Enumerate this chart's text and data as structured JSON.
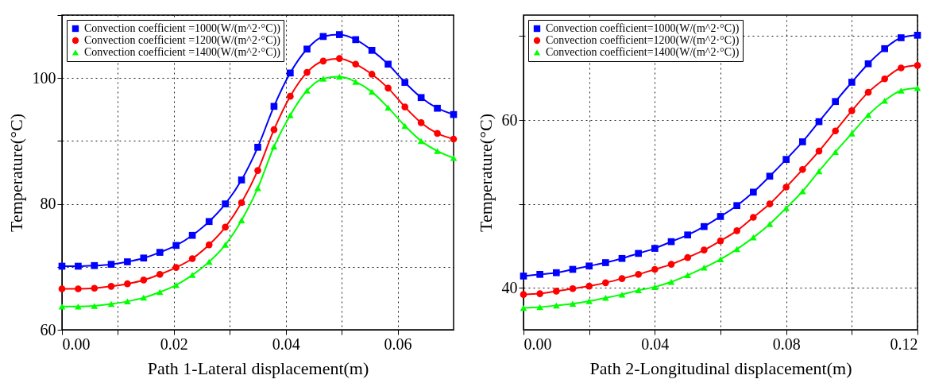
{
  "chart_data": [
    {
      "type": "line",
      "xlabel": "Path 1-Lateral displacement(m)",
      "ylabel": "Temperature(°C)",
      "grid": true,
      "legend": "top left",
      "line_style": "solid",
      "x": [
        0,
        0.0029,
        0.0058,
        0.0088,
        0.0117,
        0.0146,
        0.0175,
        0.0204,
        0.0233,
        0.0263,
        0.0292,
        0.0321,
        0.035,
        0.0379,
        0.0408,
        0.0438,
        0.0467,
        0.0496,
        0.0525,
        0.0554,
        0.0583,
        0.0613,
        0.0642,
        0.0671,
        0.07
      ],
      "xlim": [
        0,
        0.07
      ],
      "xticks": [
        {
          "value": 0,
          "label": "0.00"
        },
        {
          "value": 0.01,
          "label": null
        },
        {
          "value": 0.02,
          "label": "0.02"
        },
        {
          "value": 0.03,
          "label": null
        },
        {
          "value": 0.04,
          "label": "0.04"
        },
        {
          "value": 0.05,
          "label": null
        },
        {
          "value": 0.06,
          "label": "0.06"
        }
      ],
      "ylim": [
        60,
        110
      ],
      "yticks": [
        60,
        {
          "value": 70,
          "label": null
        },
        80,
        {
          "value": 90,
          "label": null
        },
        100,
        {
          "value": 110,
          "label": null
        }
      ],
      "series": [
        {
          "name": "Convection coefficient =1000(W/(m^2·°C))",
          "color": "#0000ff",
          "marker": "square",
          "values": [
            70.1,
            70.1,
            70.2,
            70.4,
            70.8,
            71.4,
            72.3,
            73.4,
            75.0,
            77.2,
            80.0,
            83.8,
            89.0,
            95.5,
            100.8,
            104.6,
            106.6,
            106.9,
            106.1,
            104.4,
            102.2,
            99.3,
            96.9,
            95.2,
            94.2
          ]
        },
        {
          "name": "Convection coefficient =1200(W/(m^2·°C))",
          "color": "#ff0000",
          "marker": "circle",
          "values": [
            66.5,
            66.5,
            66.6,
            66.9,
            67.3,
            67.9,
            68.8,
            69.9,
            71.3,
            73.5,
            76.3,
            80.2,
            85.3,
            91.8,
            97.1,
            100.9,
            102.7,
            103.1,
            102.2,
            100.6,
            98.4,
            95.4,
            92.9,
            91.2,
            90.3
          ]
        },
        {
          "name": "Convection coefficient =1400(W/(m^2·°C))",
          "color": "#00ff00",
          "marker": "triangle",
          "values": [
            63.7,
            63.7,
            63.8,
            64.1,
            64.5,
            65.1,
            66.0,
            67.1,
            68.7,
            70.8,
            73.5,
            77.4,
            82.5,
            89.1,
            94.1,
            98.0,
            99.9,
            100.2,
            99.4,
            97.8,
            95.3,
            92.4,
            90.0,
            88.4,
            87.3
          ]
        }
      ]
    },
    {
      "type": "line",
      "xlabel": "Path 2-Longitudinal displacement(m)",
      "ylabel": "Temperature(°C)",
      "grid": true,
      "legend": "top left",
      "line_style": "solid",
      "x": [
        0,
        0.005,
        0.01,
        0.015,
        0.02,
        0.025,
        0.03,
        0.035,
        0.04,
        0.045,
        0.05,
        0.055,
        0.06,
        0.065,
        0.07,
        0.075,
        0.08,
        0.085,
        0.09,
        0.095,
        0.1,
        0.105,
        0.11,
        0.115,
        0.12
      ],
      "xlim": [
        0,
        0.12
      ],
      "xticks": [
        {
          "value": 0,
          "label": "0.00"
        },
        {
          "value": 0.02,
          "label": null
        },
        {
          "value": 0.04,
          "label": "0.04"
        },
        {
          "value": 0.06,
          "label": null
        },
        {
          "value": 0.08,
          "label": "0.08"
        },
        {
          "value": 0.1,
          "label": null
        },
        {
          "value": 0.12,
          "label": "0.12"
        }
      ],
      "ylim": [
        35,
        72.5
      ],
      "yticks": [
        40,
        {
          "value": 50,
          "label": null
        },
        60,
        {
          "value": 70,
          "label": null
        }
      ],
      "series": [
        {
          "name": "Convection coefficient=1000(W/(m^2·°C))",
          "color": "#0000ff",
          "marker": "square",
          "values": [
            41.4,
            41.6,
            41.8,
            42.2,
            42.6,
            43.0,
            43.5,
            44.1,
            44.7,
            45.5,
            46.3,
            47.3,
            48.5,
            49.8,
            51.4,
            53.3,
            55.3,
            57.4,
            59.8,
            62.2,
            64.5,
            66.7,
            68.5,
            69.8,
            70.1
          ]
        },
        {
          "name": "Convection coefficient=1200(W/(m^2·°C))",
          "color": "#ff0000",
          "marker": "circle",
          "values": [
            39.2,
            39.3,
            39.6,
            39.9,
            40.2,
            40.6,
            41.1,
            41.6,
            42.2,
            42.8,
            43.6,
            44.5,
            45.6,
            46.8,
            48.4,
            50.0,
            52.0,
            54.1,
            56.3,
            58.7,
            61.1,
            63.3,
            64.9,
            66.2,
            66.5
          ]
        },
        {
          "name": "Convection coefficient=1400(W/(m^2·°C))",
          "color": "#00ff00",
          "marker": "triangle",
          "values": [
            37.6,
            37.7,
            37.9,
            38.1,
            38.4,
            38.8,
            39.2,
            39.7,
            40.1,
            40.7,
            41.5,
            42.4,
            43.4,
            44.6,
            46.0,
            47.6,
            49.5,
            51.5,
            53.9,
            56.2,
            58.4,
            60.6,
            62.3,
            63.5,
            63.8
          ]
        }
      ]
    }
  ]
}
